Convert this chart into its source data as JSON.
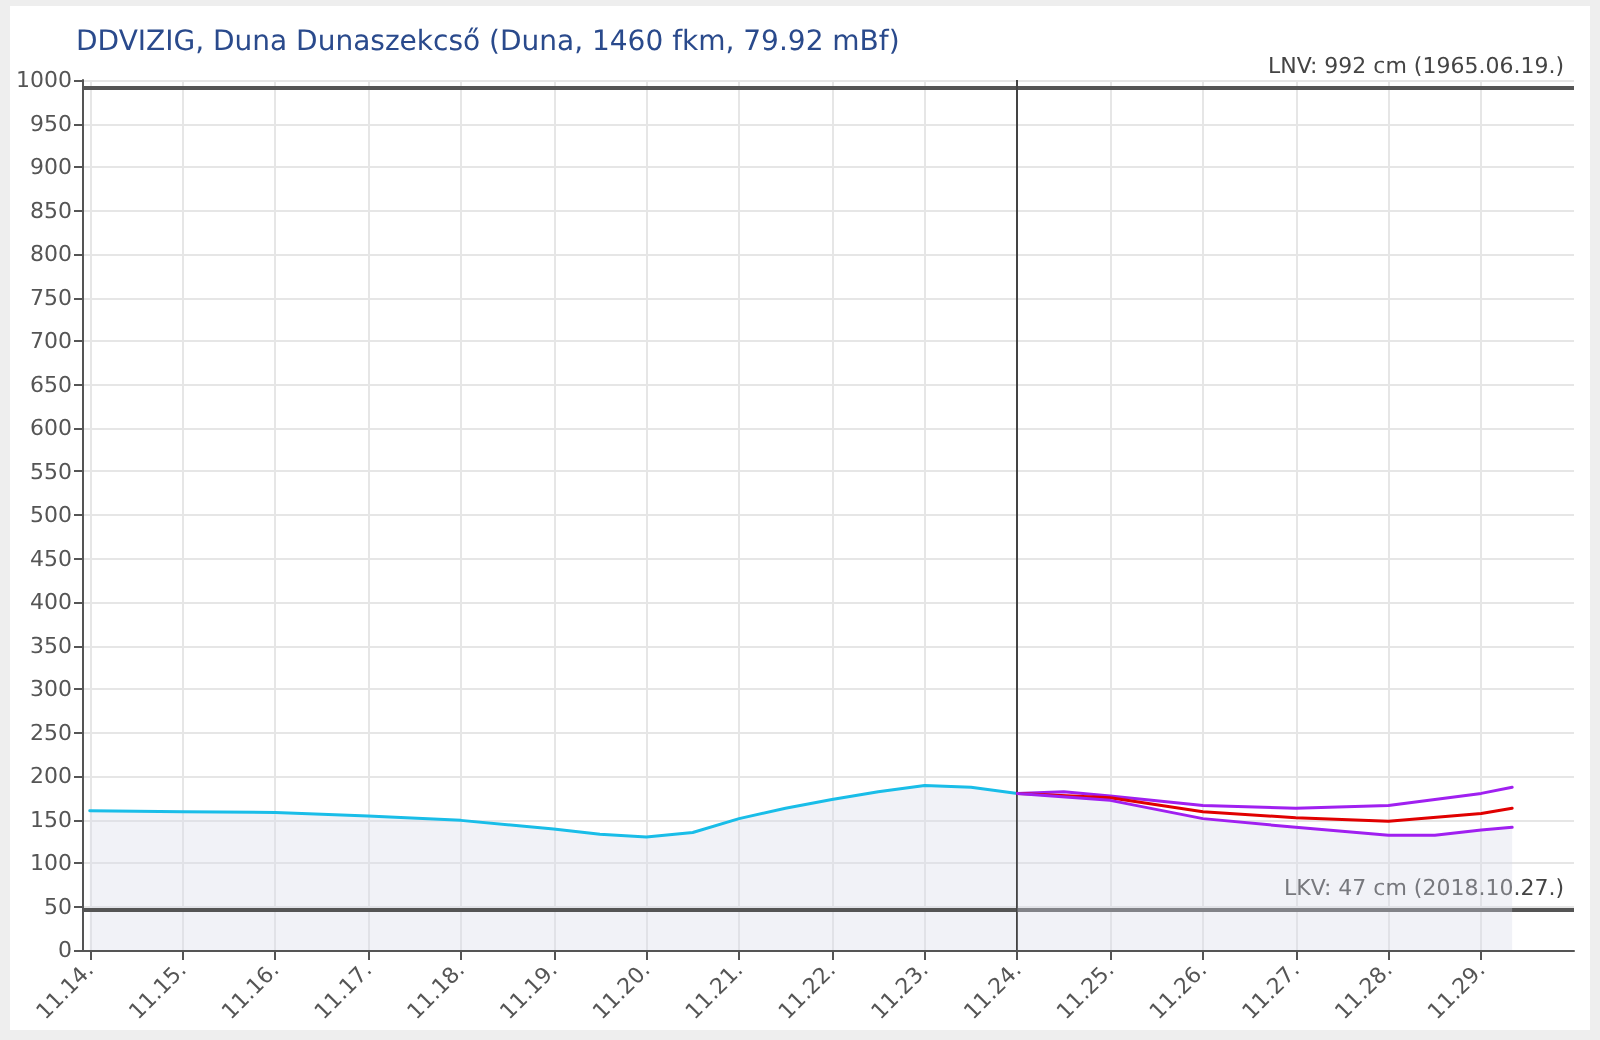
{
  "chart_data": {
    "type": "line",
    "title": "DDVIZIG, Duna Dunaszekcső (Duna, 1460 fkm, 79.92 mBf)",
    "xlim": [
      "--11-13T22:00",
      "--11-30T00:00"
    ],
    "xticks": [
      {
        "value": "--11-14",
        "label": "11.14."
      },
      {
        "value": "--11-15",
        "label": "11.15."
      },
      {
        "value": "--11-16",
        "label": "11.16."
      },
      {
        "value": "--11-17",
        "label": "11.17."
      },
      {
        "value": "--11-18",
        "label": "11.18."
      },
      {
        "value": "--11-19",
        "label": "11.19."
      },
      {
        "value": "--11-20",
        "label": "11.20."
      },
      {
        "value": "--11-21",
        "label": "11.21."
      },
      {
        "value": "--11-22",
        "label": "11.22."
      },
      {
        "value": "--11-23",
        "label": "11.23."
      },
      {
        "value": "--11-24",
        "label": "11.24."
      },
      {
        "value": "--11-25",
        "label": "11.25."
      },
      {
        "value": "--11-26",
        "label": "11.26."
      },
      {
        "value": "--11-27",
        "label": "11.27."
      },
      {
        "value": "--11-28",
        "label": "11.28."
      },
      {
        "value": "--11-29",
        "label": "11.29."
      }
    ],
    "ylim": [
      0,
      1000
    ],
    "yticks": [
      0,
      50,
      100,
      150,
      200,
      250,
      300,
      350,
      400,
      450,
      500,
      550,
      600,
      650,
      700,
      750,
      800,
      850,
      900,
      950,
      1000
    ],
    "grid": true,
    "marker": "none",
    "line_style": "solid",
    "series": [
      {
        "type": "area",
        "color": "#19bde8",
        "x": [
          "--11-14",
          "--11-15",
          "--11-16",
          "--11-17",
          "--11-18",
          "--11-19",
          "--11-19T12:00",
          "--11-20",
          "--11-20T12:00",
          "--11-21",
          "--11-21T12:00",
          "--11-22",
          "--11-22T12:00",
          "--11-23",
          "--11-23T12:00",
          "--11-24"
        ],
        "values": [
          160,
          159,
          158,
          154,
          149,
          139,
          133,
          130,
          135,
          151,
          163,
          173,
          182,
          189,
          187,
          180
        ]
      },
      {
        "color": "#a020f0",
        "x": [
          "--11-24",
          "--11-24T12:00",
          "--11-25",
          "--11-26",
          "--11-27",
          "--11-28",
          "--11-29",
          "--11-29T08:00"
        ],
        "values": [
          180,
          182,
          177,
          166,
          163,
          166,
          180,
          187
        ]
      },
      {
        "color": "#e00000",
        "x": [
          "--11-24",
          "--11-25",
          "--11-26",
          "--11-27",
          "--11-28",
          "--11-29",
          "--11-29T08:00"
        ],
        "values": [
          180,
          175,
          159,
          152,
          148,
          157,
          163
        ]
      },
      {
        "type": "area",
        "color": "#a020f0",
        "x": [
          "--11-24",
          "--11-25",
          "--11-26",
          "--11-27",
          "--11-28",
          "--11-28T12:00",
          "--11-29",
          "--11-29T08:00"
        ],
        "values": [
          180,
          172,
          151,
          141,
          132,
          132,
          138,
          141
        ]
      }
    ],
    "ref_lines": [
      {
        "axis": "y",
        "value": 992,
        "label": "LNV: 992 cm (1965.06.19.)",
        "color": "#555555"
      },
      {
        "axis": "y",
        "value": 47,
        "label": "LKV: 47 cm (2018.10.27.)",
        "color": "#555555"
      },
      {
        "axis": "x",
        "value": "--11-24",
        "label": null,
        "color": "#444444"
      }
    ]
  }
}
